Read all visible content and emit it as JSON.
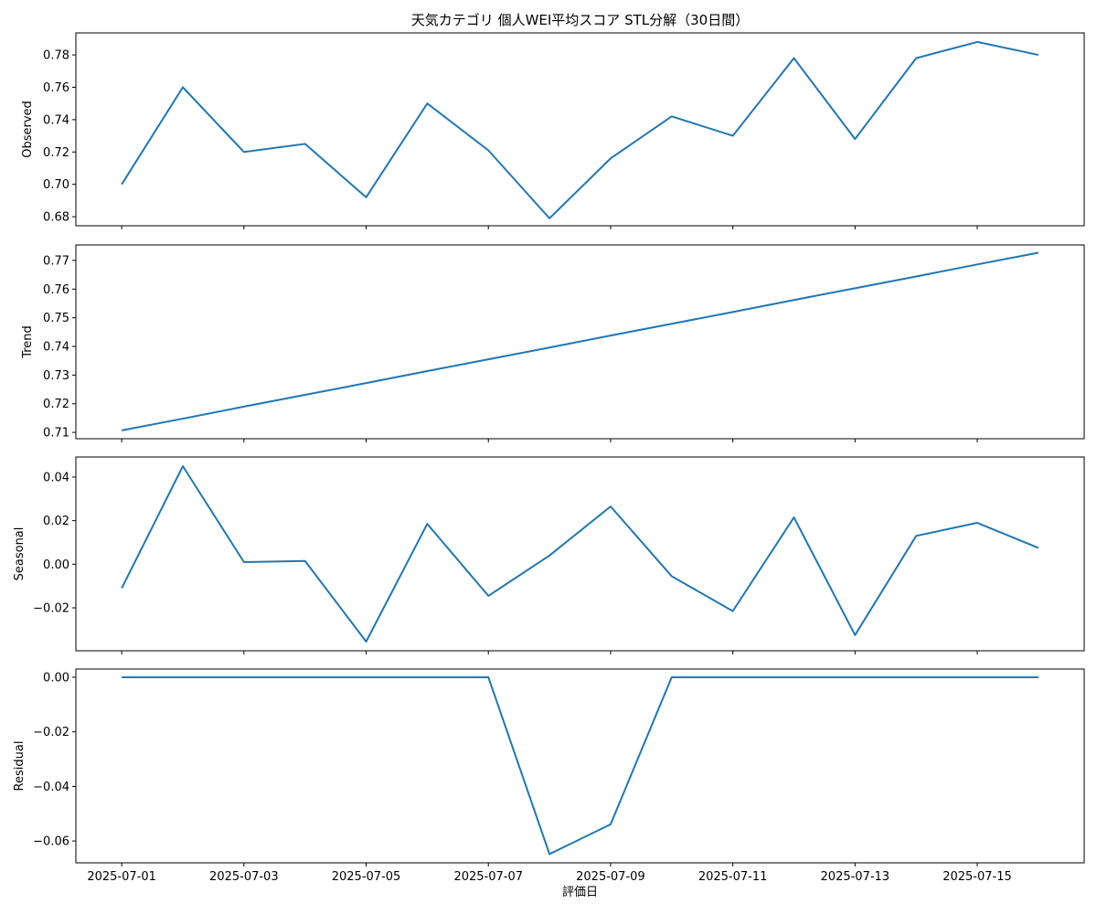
{
  "chart_data": [
    {
      "type": "line",
      "title": "天気カテゴリ 個人WEI平均スコア STL分解（30日間）",
      "ylabel": "Observed",
      "x": [
        "2025-07-01",
        "2025-07-02",
        "2025-07-03",
        "2025-07-04",
        "2025-07-05",
        "2025-07-06",
        "2025-07-07",
        "2025-07-08",
        "2025-07-09",
        "2025-07-10",
        "2025-07-11",
        "2025-07-12",
        "2025-07-13",
        "2025-07-14",
        "2025-07-15",
        "2025-07-16"
      ],
      "values": [
        0.7,
        0.76,
        0.72,
        0.725,
        0.692,
        0.75,
        0.721,
        0.679,
        0.716,
        0.742,
        0.73,
        0.778,
        0.728,
        0.778,
        0.788,
        0.78
      ],
      "color": "#1f77b4",
      "ylim": [
        0.6744,
        0.7936
      ],
      "yticks": [
        0.68,
        {
          "value": 0.7,
          "label": "0.70"
        },
        0.72,
        0.74,
        0.76,
        0.78
      ]
    },
    {
      "type": "line",
      "ylabel": "Trend",
      "x": [
        "2025-07-01",
        "2025-07-02",
        "2025-07-03",
        "2025-07-04",
        "2025-07-05",
        "2025-07-06",
        "2025-07-07",
        "2025-07-08",
        "2025-07-09",
        "2025-07-10",
        "2025-07-11",
        "2025-07-12",
        "2025-07-13",
        "2025-07-14",
        "2025-07-15",
        "2025-07-16"
      ],
      "values": [
        0.7107,
        0.7148,
        0.719,
        0.7231,
        0.7272,
        0.7314,
        0.7355,
        0.7396,
        0.7438,
        0.7479,
        0.752,
        0.7562,
        0.7603,
        0.7644,
        0.7686,
        0.7727
      ],
      "color": "#1f77b4",
      "ylim": [
        0.7078,
        0.7754
      ],
      "yticks": [
        0.71,
        0.72,
        0.73,
        0.74,
        0.75,
        0.76,
        0.77
      ]
    },
    {
      "type": "line",
      "ylabel": "Seasonal",
      "x": [
        "2025-07-01",
        "2025-07-02",
        "2025-07-03",
        "2025-07-04",
        "2025-07-05",
        "2025-07-06",
        "2025-07-07",
        "2025-07-08",
        "2025-07-09",
        "2025-07-10",
        "2025-07-11",
        "2025-07-12",
        "2025-07-13",
        "2025-07-14",
        "2025-07-15",
        "2025-07-16"
      ],
      "values": [
        -0.011,
        0.045,
        0.001,
        0.0015,
        -0.0355,
        0.0185,
        -0.0145,
        0.004,
        0.0265,
        -0.0055,
        -0.0215,
        0.0215,
        -0.0325,
        0.013,
        0.019,
        0.0075
      ],
      "color": "#1f77b4",
      "ylim": [
        -0.0397,
        0.0492
      ],
      "yticks": [
        {
          "value": -0.02,
          "label": "−0.02"
        },
        {
          "value": 0,
          "label": "0.00"
        },
        0.02,
        0.04
      ]
    },
    {
      "type": "line",
      "ylabel": "Residual",
      "xlabel": "評価日",
      "x": [
        "2025-07-01",
        "2025-07-02",
        "2025-07-03",
        "2025-07-04",
        "2025-07-05",
        "2025-07-06",
        "2025-07-07",
        "2025-07-08",
        "2025-07-09",
        "2025-07-10",
        "2025-07-11",
        "2025-07-12",
        "2025-07-13",
        "2025-07-14",
        "2025-07-15",
        "2025-07-16"
      ],
      "values": [
        0,
        0,
        0,
        0,
        0,
        0,
        0,
        -0.0648,
        -0.0539,
        0,
        0,
        0,
        0,
        0,
        0,
        0
      ],
      "color": "#1f77b4",
      "ylim": [
        -0.068,
        0.003
      ],
      "yticks": [
        {
          "value": -0.06,
          "label": "−0.06"
        },
        {
          "value": -0.04,
          "label": "−0.04"
        },
        {
          "value": -0.02,
          "label": "−0.02"
        },
        {
          "value": 0,
          "label": "0.00"
        }
      ],
      "xticks": [
        "2025-07-01",
        "2025-07-03",
        "2025-07-05",
        "2025-07-07",
        "2025-07-09",
        "2025-07-11",
        "2025-07-13",
        "2025-07-15"
      ]
    }
  ]
}
